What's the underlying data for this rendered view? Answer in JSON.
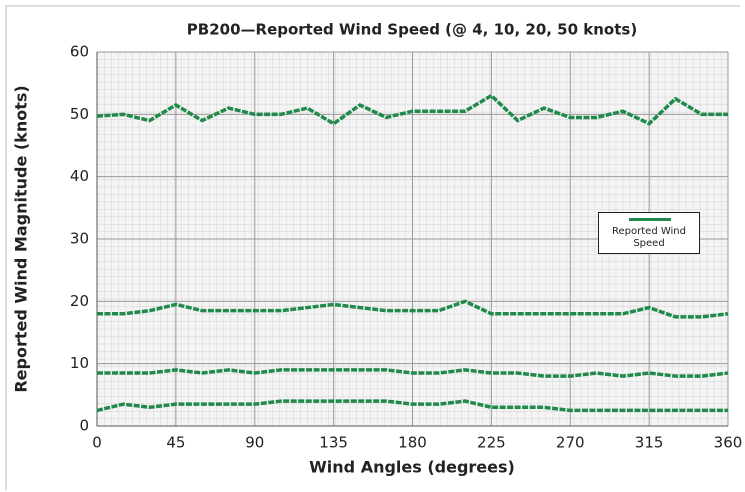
{
  "chart_data": {
    "type": "line",
    "title": "PB200—Reported Wind Speed (@ 4, 10, 20, 50 knots)",
    "x_label": "Wind Angles (degrees)",
    "y_label": "Reported Wind Magnitude (knots)",
    "x": [
      0,
      15,
      30,
      45,
      60,
      75,
      90,
      105,
      120,
      135,
      150,
      165,
      180,
      195,
      210,
      225,
      240,
      255,
      270,
      285,
      300,
      315,
      330,
      345,
      360
    ],
    "series": [
      {
        "name": "Reported Wind Speed",
        "color": "#1f8a4c",
        "values": [
          49.7,
          50,
          49,
          51.5,
          49,
          51,
          50,
          50,
          51,
          48.5,
          51.5,
          49.5,
          50.5,
          50.5,
          50.5,
          53,
          49,
          51,
          49.5,
          49.5,
          50.5,
          48.5,
          52.5,
          50,
          50
        ]
      },
      {
        "color": "#1f8a4c",
        "values": [
          18,
          18,
          18.5,
          19.5,
          18.5,
          18.5,
          18.5,
          18.5,
          19,
          19.5,
          19,
          18.5,
          18.5,
          18.5,
          20,
          18,
          18,
          18,
          18,
          18,
          18,
          19,
          17.5,
          17.5,
          18
        ]
      },
      {
        "color": "#1f8a4c",
        "values": [
          8.5,
          8.5,
          8.5,
          9,
          8.5,
          9,
          8.5,
          9,
          9,
          9,
          9,
          9,
          8.5,
          8.5,
          9,
          8.5,
          8.5,
          8,
          8,
          8.5,
          8,
          8.5,
          8,
          8,
          8.5
        ]
      },
      {
        "color": "#1f8a4c",
        "values": [
          2.5,
          3.5,
          3,
          3.5,
          3.5,
          3.5,
          3.5,
          4,
          4,
          4,
          4,
          4,
          3.5,
          3.5,
          4,
          3,
          3,
          3,
          2.5,
          2.5,
          2.5,
          2.5,
          2.5,
          2.5,
          2.5
        ]
      }
    ],
    "xlim": [
      0,
      360
    ],
    "xticks": [
      0,
      45,
      90,
      135,
      180,
      225,
      270,
      315,
      360
    ],
    "ylim": [
      0,
      60
    ],
    "yticks": [
      0,
      10,
      20,
      30,
      40,
      50,
      60
    ],
    "grid": true
  }
}
